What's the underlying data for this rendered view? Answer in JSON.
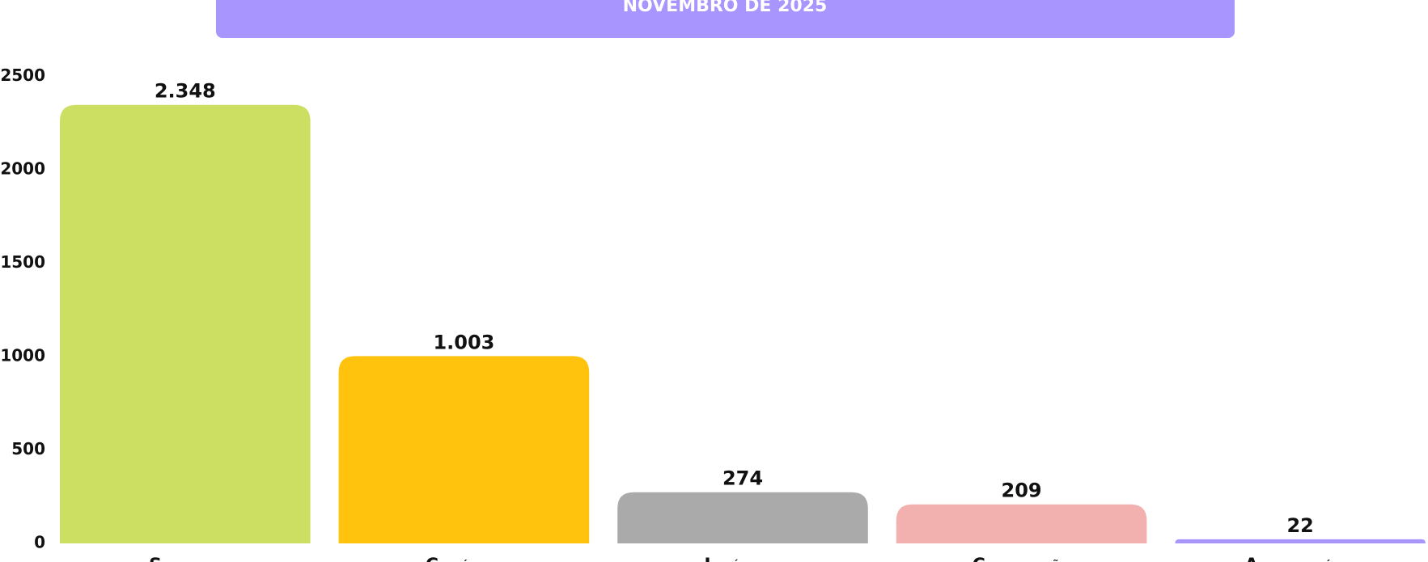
{
  "chart_data": {
    "type": "bar",
    "title": "NOVEMBRO DE 2025",
    "categories": [
      "Serviços",
      "Comércio",
      "Indústria",
      "Construção",
      "Agropecuária"
    ],
    "values": [
      2348,
      1003,
      274,
      209,
      22
    ],
    "value_labels": [
      "2.348",
      "1.003",
      "274",
      "209",
      "22"
    ],
    "colors": [
      "#cddf62",
      "#ffc30d",
      "#aaaaaa",
      "#f2b1ae",
      "#a895fd"
    ],
    "title_color": "#a895fd",
    "ylim": [
      0,
      2500
    ],
    "yticks": [
      0,
      500,
      1000,
      1500,
      2000,
      2500
    ],
    "grid": false
  }
}
